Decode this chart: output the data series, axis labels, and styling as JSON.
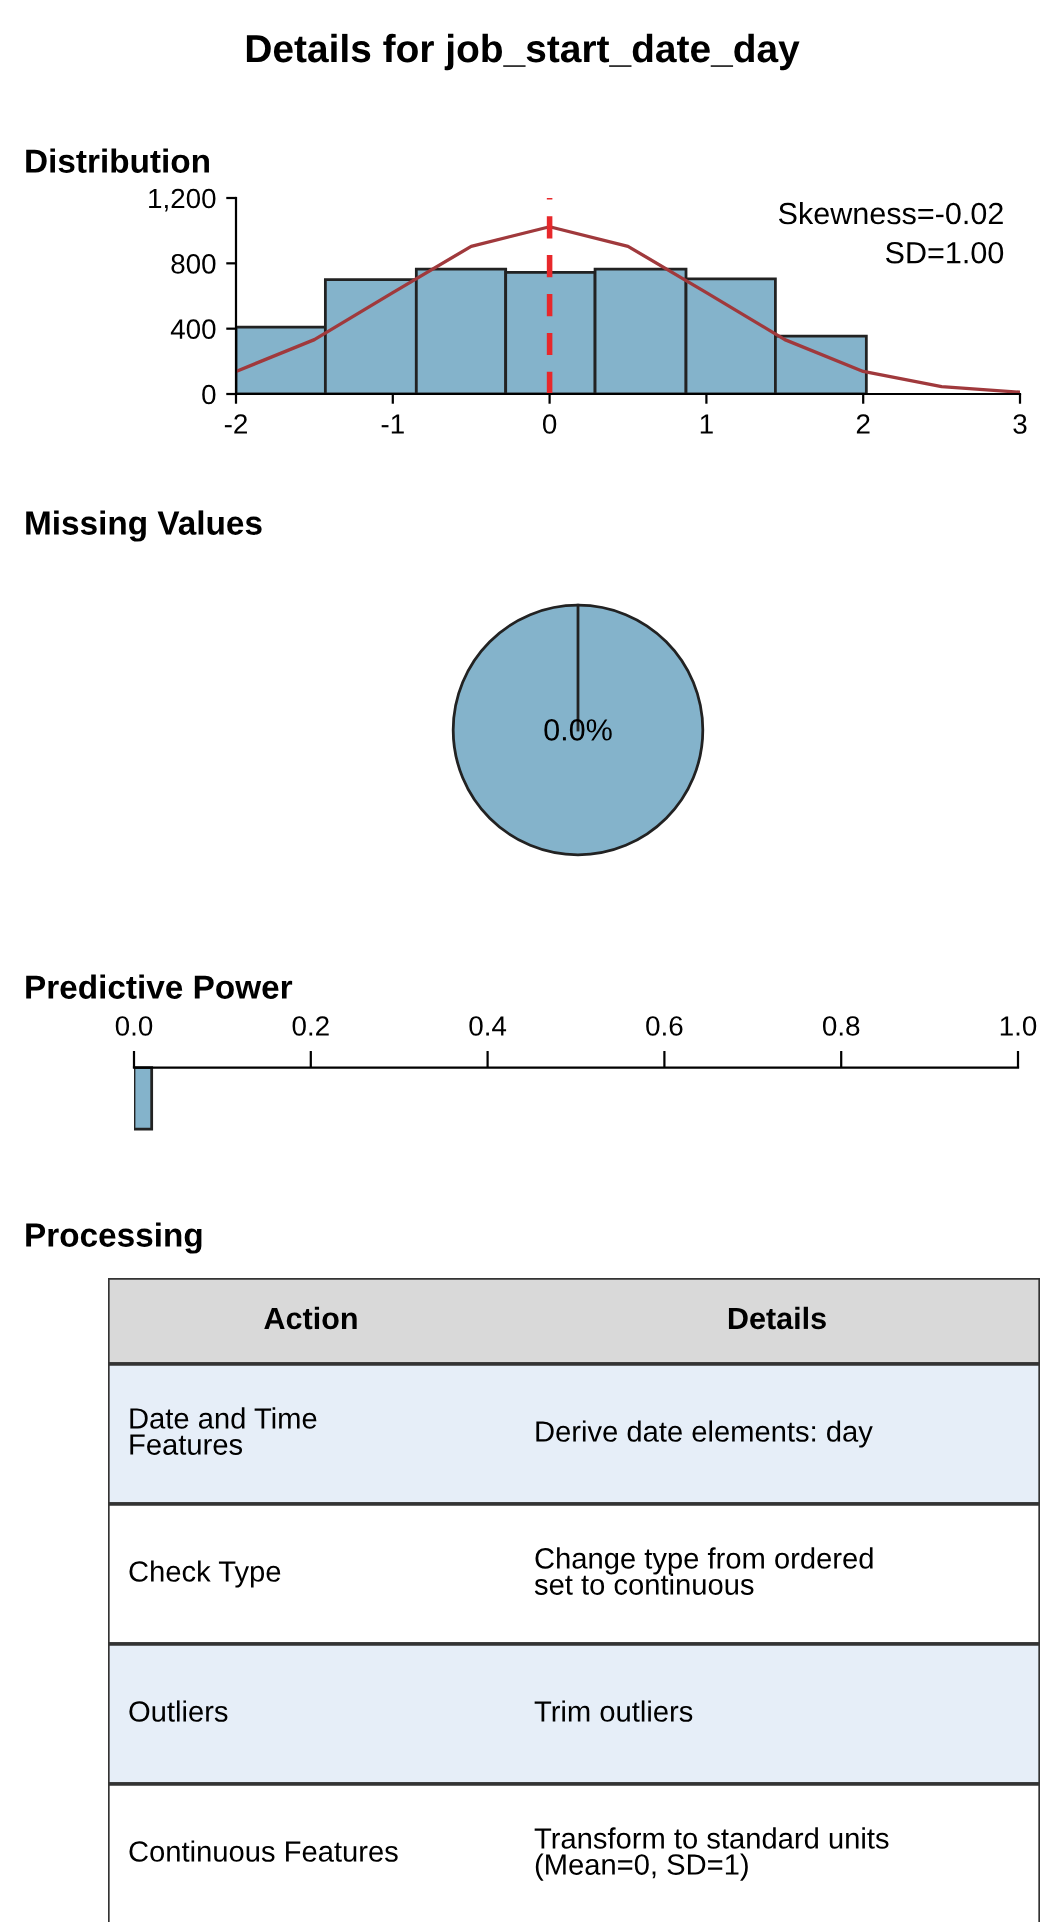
{
  "chart_data": [
    {
      "type": "histogram",
      "title": "Details for job_start_date_day",
      "subtitle": "Distribution",
      "bins": [
        -2,
        -1.43,
        -0.85,
        -0.28,
        0.29,
        0.87,
        1.44,
        2.02
      ],
      "values": [
        410,
        700,
        765,
        745,
        765,
        705,
        355
      ],
      "color": "#84b3cb",
      "xlim": [
        -2,
        3
      ],
      "xticks": [
        -2,
        -1,
        0,
        1,
        2,
        3
      ],
      "ylim": [
        0,
        1200
      ],
      "yticks": [
        0,
        400,
        800,
        {
          "value": 1200,
          "label": "1,200"
        }
      ],
      "series": [
        {
          "type": "line",
          "color": "#a0393c",
          "x": [
            -2,
            -1.5,
            -1,
            -0.5,
            0,
            0.5,
            1,
            1.5,
            2,
            2.5,
            3
          ],
          "values": [
            138,
            333,
            621,
            904,
            1024,
            904,
            621,
            333,
            138,
            45,
            11
          ]
        }
      ],
      "ref_lines": [
        {
          "axis": "x",
          "value": 0,
          "color": "#e8282b",
          "line_style": "dashed"
        }
      ],
      "annotations": [
        "Skewness=-0.02",
        "SD=1.00"
      ],
      "grid": false
    },
    {
      "type": "pie",
      "title": "Missing Values",
      "categories": [
        null,
        null
      ],
      "values": [
        0,
        100
      ],
      "colors": [
        "#84b3cb",
        "#84b3cb"
      ],
      "value_labels": [
        "0.0%",
        null
      ]
    },
    {
      "type": "bar",
      "orientation": "horizontal",
      "title": "Predictive Power",
      "categories": [
        null
      ],
      "values": [
        0.02
      ],
      "color": "#84b3cb",
      "xlim": [
        0,
        1
      ],
      "xticks": [
        {
          "value": 0,
          "label": "0.0"
        },
        {
          "value": 0.2,
          "label": "0.2"
        },
        {
          "value": 0.4,
          "label": "0.4"
        },
        {
          "value": 0.6,
          "label": "0.6"
        },
        {
          "value": 0.8,
          "label": "0.8"
        },
        {
          "value": 1,
          "label": "1.0"
        }
      ],
      "tick_labels": "x"
    },
    {
      "type": "other",
      "title": "Processing",
      "categories": [
        "Action",
        "Details"
      ],
      "y_categories": [
        "Date and Time\nFeatures",
        "Check Type",
        "Outliers",
        "Continuous Features"
      ],
      "y2_categories": [
        "Derive date elements: day",
        "Change type from ordered\nset to continuous",
        "Trim outliers",
        "Transform to standard units\n(Mean=0, SD=1)"
      ]
    }
  ]
}
